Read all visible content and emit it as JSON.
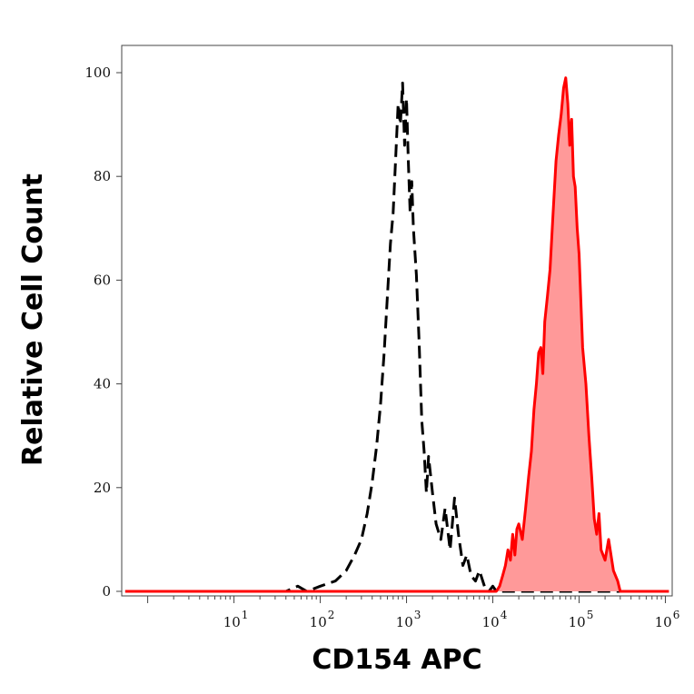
{
  "chart_data": {
    "type": "area",
    "title": "",
    "xlabel": "CD154 APC",
    "ylabel": "Relative Cell Count",
    "x_scale": "log",
    "xlim": [
      0.5,
      1200000
    ],
    "ylim": [
      0,
      100
    ],
    "grid": false,
    "legend": "none",
    "x_tick_labels": [
      {
        "base": "10",
        "exp": "1",
        "value": 10
      },
      {
        "base": "10",
        "exp": "2",
        "value": 100
      },
      {
        "base": "10",
        "exp": "3",
        "value": 1000
      },
      {
        "base": "10",
        "exp": "4",
        "value": 10000
      },
      {
        "base": "10",
        "exp": "5",
        "value": 100000
      },
      {
        "base": "10",
        "exp": "6",
        "value": 1000000
      }
    ],
    "y_tick_labels": [
      "0",
      "20",
      "40",
      "60",
      "80",
      "100"
    ],
    "y_ticks": [
      0,
      20,
      40,
      60,
      80,
      100
    ],
    "series": [
      {
        "style": "dashed",
        "color": "#000000",
        "fill": "none",
        "x": [
          0.55,
          40,
          55,
          70,
          100,
          150,
          200,
          250,
          300,
          350,
          400,
          450,
          500,
          550,
          600,
          650,
          700,
          750,
          800,
          850,
          900,
          950,
          1000,
          1050,
          1100,
          1150,
          1200,
          1300,
          1400,
          1500,
          1600,
          1700,
          1800,
          2000,
          2200,
          2500,
          2800,
          3200,
          3600,
          4000,
          4500,
          5000,
          5600,
          6300,
          7000,
          8000,
          9000,
          10000,
          11000,
          12000,
          20000,
          1100000
        ],
        "y": [
          0,
          0,
          1,
          0,
          1,
          2,
          4,
          7,
          10,
          15,
          21,
          28,
          36,
          46,
          57,
          67,
          73,
          84,
          94,
          90,
          98,
          86,
          95,
          83,
          73,
          79,
          70,
          61,
          48,
          33,
          27,
          19,
          26,
          19,
          13,
          10,
          16,
          8,
          18,
          11,
          5,
          7,
          3,
          2,
          4,
          1,
          0,
          1,
          0,
          0,
          0,
          0
        ]
      },
      {
        "style": "solid",
        "color": "#ff0000",
        "fill": "#ff9999",
        "x": [
          0.55,
          10,
          100,
          1000,
          10000,
          11000,
          12000,
          13000,
          14000,
          15000,
          16000,
          17000,
          18000,
          19000,
          20000,
          22000,
          24000,
          26000,
          28000,
          30000,
          32000,
          34000,
          36000,
          38000,
          40000,
          43000,
          46000,
          50000,
          54000,
          58000,
          62000,
          66000,
          70000,
          74000,
          78000,
          82000,
          86000,
          90000,
          95000,
          100000,
          110000,
          120000,
          130000,
          140000,
          150000,
          160000,
          170000,
          180000,
          200000,
          220000,
          250000,
          280000,
          300000,
          1100000
        ],
        "y": [
          0,
          0,
          0,
          0,
          0,
          0,
          1,
          3,
          5,
          8,
          6,
          11,
          7,
          12,
          13,
          10,
          16,
          22,
          27,
          35,
          40,
          46,
          47,
          42,
          52,
          57,
          62,
          73,
          83,
          88,
          92,
          97,
          99,
          94,
          86,
          91,
          80,
          78,
          70,
          65,
          47,
          40,
          30,
          22,
          14,
          11,
          15,
          8,
          6,
          10,
          4,
          2,
          0,
          0
        ]
      }
    ]
  }
}
